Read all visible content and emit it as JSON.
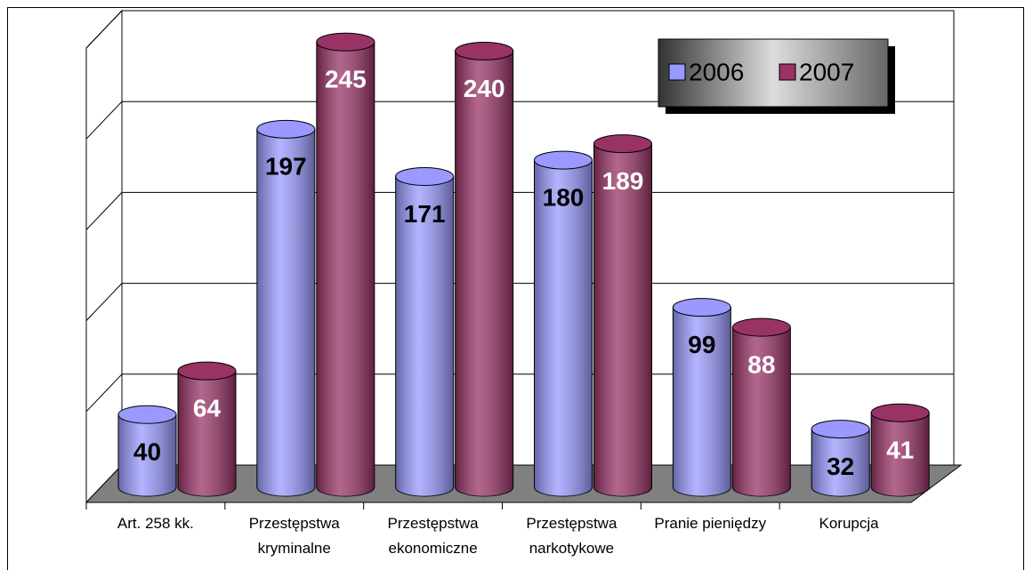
{
  "chart_data": {
    "type": "bar3d",
    "categories": [
      "Art. 258 kk.",
      "Przestępstwa kryminalne",
      "Przestępstwa ekonomiczne",
      "Przestępstwa narkotykowe",
      "Pranie pieniędzy",
      "Korupcja"
    ],
    "series": [
      {
        "name": "2006",
        "color": "#9999ff",
        "label_color": "#000000",
        "values": [
          40,
          197,
          171,
          180,
          99,
          32
        ]
      },
      {
        "name": "2007",
        "color": "#993366",
        "label_color": "#ffffff",
        "values": [
          64,
          245,
          240,
          189,
          88,
          41
        ]
      }
    ],
    "ylim": [
      0,
      250
    ],
    "yticks": [
      0,
      50,
      100,
      150,
      200,
      250
    ],
    "grid": true,
    "legend": "top-right"
  }
}
